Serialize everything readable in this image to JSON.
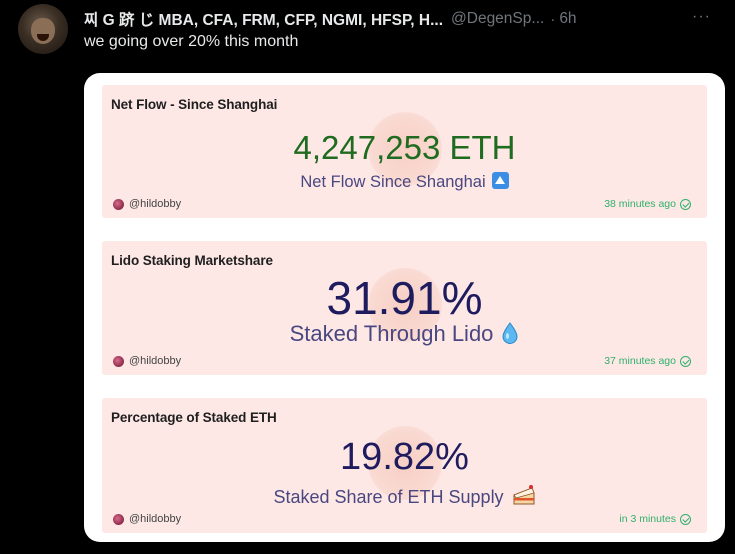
{
  "tweet": {
    "display_name": "찌 G 跻 じ MBA, CFA, FRM, CFP, NGMI, HFSP, H...",
    "handle": "@DegenSp...",
    "separator": "·",
    "time": "6h",
    "more": "···",
    "text": "we going over 20% this month"
  },
  "cards": [
    {
      "title": "Net Flow - Since Shanghai",
      "value": "4,247,253 ETH",
      "value_color": "#1f6b1f",
      "label": "Net Flow Since Shanghai",
      "emoji": "up-arrow-icon",
      "author": "@hildobby",
      "updated": "38 minutes ago"
    },
    {
      "title": "Lido Staking Marketshare",
      "value": "31.91%",
      "value_color": "#1e1b5e",
      "label": "Staked Through Lido",
      "emoji": "droplet-icon",
      "author": "@hildobby",
      "updated": "37 minutes ago"
    },
    {
      "title": "Percentage of Staked ETH",
      "value": "19.82%",
      "value_color": "#1e1b5e",
      "label": "Staked Share of ETH Supply",
      "emoji": "cake-icon",
      "author": "@hildobby",
      "updated": "in 3 minutes"
    }
  ],
  "colors": {
    "background": "#000000",
    "card_background": "#fde8e6",
    "updated_green": "#2fb06a"
  }
}
